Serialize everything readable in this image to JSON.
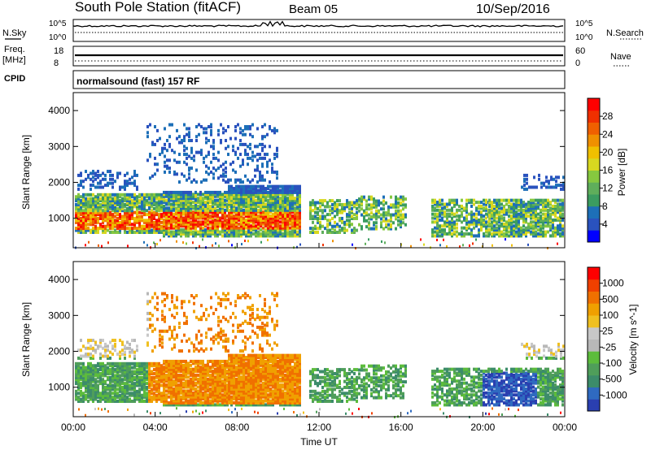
{
  "header": {
    "title": "South Pole Station (fitACF)",
    "beam": "Beam 05",
    "date": "10/Sep/2016"
  },
  "top_panels": {
    "nsky": {
      "left_label": "N.Sky",
      "right_label": "N.Search",
      "ticks_left": [
        "10^5",
        "10^0"
      ],
      "ticks_right": [
        "10^5",
        "10^0"
      ]
    },
    "freq": {
      "left_label_1": "Freq.",
      "left_label_2": "[MHz]",
      "ticks_left": [
        "18",
        "8"
      ],
      "right_label": "Nave",
      "ticks_right": [
        "60",
        "0"
      ]
    },
    "cpid": {
      "label": "CPID",
      "text": "normalsound (fast) 157 RF"
    }
  },
  "colors": {
    "power": [
      "#0000ff",
      "#2a52be",
      "#1d6fb8",
      "#3b9c60",
      "#5fae5b",
      "#86c83f",
      "#d8d820",
      "#f0c000",
      "#f09000",
      "#f06000",
      "#f03000",
      "#ff0000"
    ],
    "velocity": [
      "#2a3fb0",
      "#2f6ac0",
      "#3c8c6a",
      "#4f9e5a",
      "#5cbc3c",
      "#b8b8b8",
      "#c8c8c8",
      "#f0c020",
      "#f0a000",
      "#f07000",
      "#f04000",
      "#ff0000"
    ]
  },
  "chart_data": [
    {
      "type": "heatmap",
      "name": "power",
      "ylabel": "Slant Range [km]",
      "ylim": [
        180,
        4500
      ],
      "yticks": [
        "1000",
        "2000",
        "3000",
        "4000"
      ],
      "xlim": [
        "00:00",
        "24:00"
      ],
      "colorbar": {
        "label": "Power [dB]",
        "range": [
          0,
          32
        ],
        "ticks": [
          "4",
          "8",
          "12",
          "16",
          "20",
          "24",
          "28"
        ]
      }
    },
    {
      "type": "heatmap",
      "name": "velocity",
      "ylabel": "Slant Range [km]",
      "ylim": [
        180,
        4500
      ],
      "yticks": [
        "1000",
        "2000",
        "3000",
        "4000"
      ],
      "xlim": [
        "00:00",
        "24:00"
      ],
      "xticks": [
        "00:00",
        "04:00",
        "08:00",
        "12:00",
        "16:00",
        "20:00",
        "00:00"
      ],
      "xlabel": "Time UT",
      "colorbar": {
        "label": "Velocity [m s^-1]",
        "ticks": [
          "1000",
          "500",
          "100",
          "25",
          "-25",
          "-100",
          "-500",
          "-1000"
        ]
      }
    }
  ]
}
